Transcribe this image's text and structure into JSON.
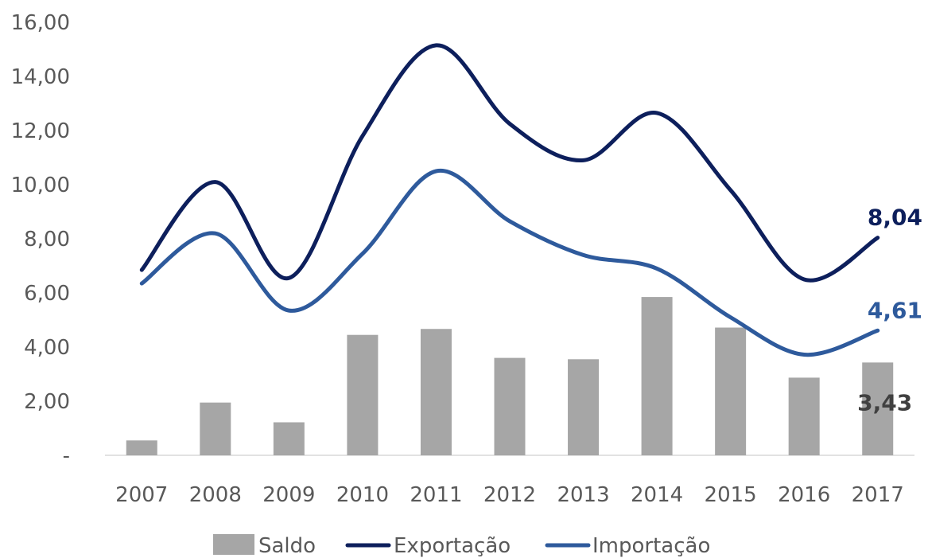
{
  "chart_data": {
    "type": "bar",
    "categories": [
      "2007",
      "2008",
      "2009",
      "2010",
      "2011",
      "2012",
      "2013",
      "2014",
      "2015",
      "2016",
      "2017"
    ],
    "ylim": [
      0,
      16
    ],
    "y_ticks": [
      {
        "value": 0,
        "label": "-"
      },
      {
        "value": 2,
        "label": "2,00"
      },
      {
        "value": 4,
        "label": "4,00"
      },
      {
        "value": 6,
        "label": "6,00"
      },
      {
        "value": 8,
        "label": "8,00"
      },
      {
        "value": 10,
        "label": "10,00"
      },
      {
        "value": 12,
        "label": "12,00"
      },
      {
        "value": 14,
        "label": "14,00"
      },
      {
        "value": 16,
        "label": "16,00"
      }
    ],
    "grid": false,
    "legend_position": "bottom",
    "series": [
      {
        "name": "Saldo",
        "type": "bar",
        "color": "#a6a6a6",
        "values": [
          0.55,
          1.95,
          1.22,
          4.45,
          4.67,
          3.6,
          3.55,
          5.85,
          4.72,
          2.87,
          3.43
        ],
        "end_label": "3,43",
        "end_label_color": "#404040"
      },
      {
        "name": "Exportação",
        "type": "line",
        "color": "#0d1f5c",
        "values": [
          6.85,
          10.1,
          6.55,
          11.8,
          15.15,
          12.25,
          10.9,
          12.65,
          9.8,
          6.5,
          8.04
        ],
        "end_label": "8,04",
        "end_label_color": "#0d1f5c"
      },
      {
        "name": "Importação",
        "type": "line",
        "color": "#2e5a9c",
        "values": [
          6.35,
          8.2,
          5.35,
          7.45,
          10.5,
          8.65,
          7.4,
          6.9,
          5.1,
          3.72,
          4.61
        ],
        "end_label": "4,61",
        "end_label_color": "#2e5a9c"
      }
    ]
  }
}
